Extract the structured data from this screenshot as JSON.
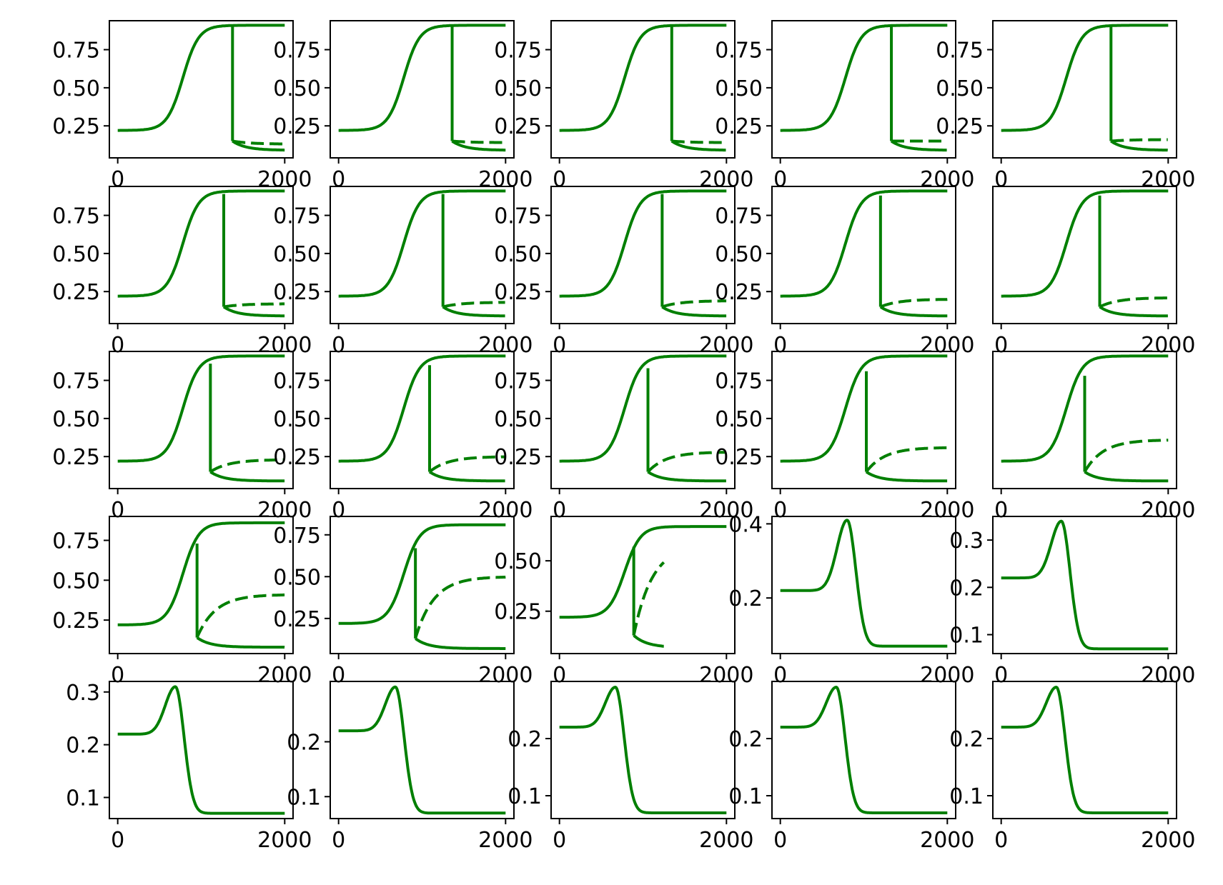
{
  "figure": {
    "title": "",
    "rows": 5,
    "cols": 5,
    "line_color": "#007f00"
  },
  "chart_data": [
    {
      "panel": 1,
      "type": "line",
      "kind": "fold",
      "ylim": [
        0.04,
        0.94
      ],
      "yticks": [
        0.25,
        0.5,
        0.75
      ],
      "ytick_labels": [
        "0.25",
        "0.50",
        "0.75"
      ],
      "xlim": [
        -100,
        2100
      ],
      "xticks": [
        0,
        2000
      ],
      "xtick_labels": [
        "0",
        "2000"
      ],
      "fold_x": 1375,
      "end_x": 2000,
      "base": 0.22,
      "upper": 0.91,
      "low": 0.09,
      "dashed_top": 0.13,
      "jump_top": 0.9,
      "x_start": 0,
      "x_end": 2000
    },
    {
      "panel": 2,
      "type": "line",
      "kind": "fold",
      "ylim": [
        0.04,
        0.94
      ],
      "yticks": [
        0.25,
        0.5,
        0.75
      ],
      "ytick_labels": [
        "0.25",
        "0.50",
        "0.75"
      ],
      "xlim": [
        -100,
        2100
      ],
      "xticks": [
        0,
        2000
      ],
      "xtick_labels": [
        "0",
        "2000"
      ],
      "fold_x": 1360,
      "end_x": 2000,
      "base": 0.22,
      "upper": 0.91,
      "low": 0.09,
      "dashed_top": 0.14,
      "jump_top": 0.9,
      "x_start": 0,
      "x_end": 2000
    },
    {
      "panel": 3,
      "type": "line",
      "kind": "fold",
      "ylim": [
        0.04,
        0.94
      ],
      "yticks": [
        0.25,
        0.5,
        0.75
      ],
      "ytick_labels": [
        "0.25",
        "0.50",
        "0.75"
      ],
      "xlim": [
        -100,
        2100
      ],
      "xticks": [
        0,
        2000
      ],
      "xtick_labels": [
        "0",
        "2000"
      ],
      "fold_x": 1345,
      "end_x": 2000,
      "base": 0.22,
      "upper": 0.91,
      "low": 0.09,
      "dashed_top": 0.14,
      "jump_top": 0.9,
      "x_start": 0,
      "x_end": 2000
    },
    {
      "panel": 4,
      "type": "line",
      "kind": "fold",
      "ylim": [
        0.04,
        0.94
      ],
      "yticks": [
        0.25,
        0.5,
        0.75
      ],
      "ytick_labels": [
        "0.25",
        "0.50",
        "0.75"
      ],
      "xlim": [
        -100,
        2100
      ],
      "xticks": [
        0,
        2000
      ],
      "xtick_labels": [
        "0",
        "2000"
      ],
      "fold_x": 1330,
      "end_x": 2000,
      "base": 0.22,
      "upper": 0.91,
      "low": 0.09,
      "dashed_top": 0.15,
      "jump_top": 0.9,
      "x_start": 0,
      "x_end": 2000
    },
    {
      "panel": 5,
      "type": "line",
      "kind": "fold",
      "ylim": [
        0.04,
        0.94
      ],
      "yticks": [
        0.25,
        0.5,
        0.75
      ],
      "ytick_labels": [
        "0.25",
        "0.50",
        "0.75"
      ],
      "xlim": [
        -100,
        2100
      ],
      "xticks": [
        0,
        2000
      ],
      "xtick_labels": [
        "0",
        "2000"
      ],
      "fold_x": 1315,
      "end_x": 2000,
      "base": 0.22,
      "upper": 0.91,
      "low": 0.09,
      "dashed_top": 0.16,
      "jump_top": 0.9,
      "x_start": 0,
      "x_end": 2000
    },
    {
      "panel": 6,
      "type": "line",
      "kind": "fold",
      "ylim": [
        0.04,
        0.94
      ],
      "yticks": [
        0.25,
        0.5,
        0.75
      ],
      "ytick_labels": [
        "0.25",
        "0.50",
        "0.75"
      ],
      "xlim": [
        -100,
        2100
      ],
      "xticks": [
        0,
        2000
      ],
      "xtick_labels": [
        "0",
        "2000"
      ],
      "fold_x": 1270,
      "end_x": 2000,
      "base": 0.22,
      "upper": 0.91,
      "low": 0.09,
      "dashed_top": 0.17,
      "jump_top": 0.89,
      "x_start": 0,
      "x_end": 2000
    },
    {
      "panel": 7,
      "type": "line",
      "kind": "fold",
      "ylim": [
        0.04,
        0.94
      ],
      "yticks": [
        0.25,
        0.5,
        0.75
      ],
      "ytick_labels": [
        "0.25",
        "0.50",
        "0.75"
      ],
      "xlim": [
        -100,
        2100
      ],
      "xticks": [
        0,
        2000
      ],
      "xtick_labels": [
        "0",
        "2000"
      ],
      "fold_x": 1250,
      "end_x": 2000,
      "base": 0.22,
      "upper": 0.91,
      "low": 0.09,
      "dashed_top": 0.18,
      "jump_top": 0.89,
      "x_start": 0,
      "x_end": 2000
    },
    {
      "panel": 8,
      "type": "line",
      "kind": "fold",
      "ylim": [
        0.04,
        0.94
      ],
      "yticks": [
        0.25,
        0.5,
        0.75
      ],
      "ytick_labels": [
        "0.25",
        "0.50",
        "0.75"
      ],
      "xlim": [
        -100,
        2100
      ],
      "xticks": [
        0,
        2000
      ],
      "xtick_labels": [
        "0",
        "2000"
      ],
      "fold_x": 1230,
      "end_x": 2000,
      "base": 0.22,
      "upper": 0.91,
      "low": 0.09,
      "dashed_top": 0.19,
      "jump_top": 0.89,
      "x_start": 0,
      "x_end": 2000
    },
    {
      "panel": 9,
      "type": "line",
      "kind": "fold",
      "ylim": [
        0.04,
        0.94
      ],
      "yticks": [
        0.25,
        0.5,
        0.75
      ],
      "ytick_labels": [
        "0.25",
        "0.50",
        "0.75"
      ],
      "xlim": [
        -100,
        2100
      ],
      "xticks": [
        0,
        2000
      ],
      "xtick_labels": [
        "0",
        "2000"
      ],
      "fold_x": 1200,
      "end_x": 2000,
      "base": 0.22,
      "upper": 0.91,
      "low": 0.09,
      "dashed_top": 0.2,
      "jump_top": 0.88,
      "x_start": 0,
      "x_end": 2000
    },
    {
      "panel": 10,
      "type": "line",
      "kind": "fold",
      "ylim": [
        0.04,
        0.94
      ],
      "yticks": [],
      "ytick_labels": [],
      "xlim": [
        -100,
        2100
      ],
      "xticks": [
        0,
        2000
      ],
      "xtick_labels": [
        "0",
        "2000"
      ],
      "fold_x": 1180,
      "end_x": 2000,
      "base": 0.22,
      "upper": 0.91,
      "low": 0.09,
      "dashed_top": 0.21,
      "jump_top": 0.88,
      "x_start": 0,
      "x_end": 2000
    },
    {
      "panel": 11,
      "type": "line",
      "kind": "fold",
      "ylim": [
        0.04,
        0.94
      ],
      "yticks": [
        0.25,
        0.5,
        0.75
      ],
      "ytick_labels": [
        "0.25",
        "0.50",
        "0.75"
      ],
      "xlim": [
        -100,
        2100
      ],
      "xticks": [
        0,
        2000
      ],
      "xtick_labels": [
        "0",
        "2000"
      ],
      "fold_x": 1110,
      "end_x": 2000,
      "base": 0.22,
      "upper": 0.91,
      "low": 0.09,
      "dashed_top": 0.23,
      "jump_top": 0.86,
      "x_start": 0,
      "x_end": 2000
    },
    {
      "panel": 12,
      "type": "line",
      "kind": "fold",
      "ylim": [
        0.04,
        0.94
      ],
      "yticks": [
        0.25,
        0.5,
        0.75
      ],
      "ytick_labels": [
        "0.25",
        "0.50",
        "0.75"
      ],
      "xlim": [
        -100,
        2100
      ],
      "xticks": [
        0,
        2000
      ],
      "xtick_labels": [
        "0",
        "2000"
      ],
      "fold_x": 1090,
      "end_x": 2000,
      "base": 0.22,
      "upper": 0.91,
      "low": 0.09,
      "dashed_top": 0.25,
      "jump_top": 0.85,
      "x_start": 0,
      "x_end": 2000
    },
    {
      "panel": 13,
      "type": "line",
      "kind": "fold",
      "ylim": [
        0.04,
        0.94
      ],
      "yticks": [
        0.25,
        0.5,
        0.75
      ],
      "ytick_labels": [
        "0.25",
        "0.50",
        "0.75"
      ],
      "xlim": [
        -100,
        2100
      ],
      "xticks": [
        0,
        2000
      ],
      "xtick_labels": [
        "0",
        "2000"
      ],
      "fold_x": 1060,
      "end_x": 2000,
      "base": 0.22,
      "upper": 0.91,
      "low": 0.09,
      "dashed_top": 0.28,
      "jump_top": 0.83,
      "x_start": 0,
      "x_end": 2000
    },
    {
      "panel": 14,
      "type": "line",
      "kind": "fold",
      "ylim": [
        0.04,
        0.94
      ],
      "yticks": [
        0.25,
        0.5,
        0.75
      ],
      "ytick_labels": [
        "0.25",
        "0.50",
        "0.75"
      ],
      "xlim": [
        -100,
        2100
      ],
      "xticks": [
        0,
        2000
      ],
      "xtick_labels": [
        "0",
        "2000"
      ],
      "fold_x": 1030,
      "end_x": 2000,
      "base": 0.22,
      "upper": 0.91,
      "low": 0.09,
      "dashed_top": 0.31,
      "jump_top": 0.81,
      "x_start": 0,
      "x_end": 2000
    },
    {
      "panel": 15,
      "type": "line",
      "kind": "fold",
      "ylim": [
        0.04,
        0.94
      ],
      "yticks": [],
      "ytick_labels": [],
      "xlim": [
        -100,
        2100
      ],
      "xticks": [
        0,
        2000
      ],
      "xtick_labels": [
        "0",
        "2000"
      ],
      "fold_x": 1000,
      "end_x": 2000,
      "base": 0.22,
      "upper": 0.91,
      "low": 0.09,
      "dashed_top": 0.36,
      "jump_top": 0.78,
      "x_start": 0,
      "x_end": 2000
    },
    {
      "panel": 16,
      "type": "line",
      "kind": "fold",
      "ylim": [
        0.04,
        0.9
      ],
      "yticks": [
        0.25,
        0.5,
        0.75
      ],
      "ytick_labels": [
        "0.25",
        "0.50",
        "0.75"
      ],
      "xlim": [
        -100,
        2100
      ],
      "xticks": [
        0,
        2000
      ],
      "xtick_labels": [
        "0",
        "2000"
      ],
      "fold_x": 950,
      "end_x": 2000,
      "base": 0.22,
      "upper": 0.86,
      "low": 0.08,
      "dashed_top": 0.41,
      "jump_top": 0.73,
      "x_start": 0,
      "x_end": 2000
    },
    {
      "panel": 17,
      "type": "line",
      "kind": "fold",
      "ylim": [
        0.04,
        0.86
      ],
      "yticks": [
        0.25,
        0.5,
        0.75
      ],
      "ytick_labels": [
        "0.25",
        "0.50",
        "0.75"
      ],
      "xlim": [
        -100,
        2100
      ],
      "xticks": [
        0,
        2000
      ],
      "xtick_labels": [
        "0",
        "2000"
      ],
      "fold_x": 920,
      "end_x": 2000,
      "base": 0.22,
      "upper": 0.81,
      "low": 0.07,
      "dashed_top": 0.5,
      "jump_top": 0.67,
      "x_start": 0,
      "x_end": 2000
    },
    {
      "panel": 18,
      "type": "line",
      "kind": "fold",
      "ylim": [
        0.04,
        0.72
      ],
      "yticks": [
        0.25,
        0.5
      ],
      "ytick_labels": [
        "0.25",
        "0.50"
      ],
      "xlim": [
        -100,
        2100
      ],
      "xticks": [
        0,
        2000
      ],
      "xtick_labels": [
        "0",
        "2000"
      ],
      "fold_x": 890,
      "end_x": 1250,
      "base": 0.22,
      "upper": 0.67,
      "low": 0.07,
      "dashed_top": 0.58,
      "jump_top": 0.57,
      "x_start": 0,
      "x_end": 2000
    },
    {
      "panel": 19,
      "type": "line",
      "kind": "peak",
      "ylim": [
        0.05,
        0.42
      ],
      "yticks": [
        0.2,
        0.4
      ],
      "ytick_labels": [
        "0.2",
        "0.4"
      ],
      "xlim": [
        -100,
        2100
      ],
      "xticks": [
        0,
        2000
      ],
      "xtick_labels": [
        "0",
        "2000"
      ],
      "base": 0.22,
      "peak": 0.41,
      "peak_x": 800,
      "final": 0.07,
      "x_start": 0,
      "x_end": 2000
    },
    {
      "panel": 20,
      "type": "line",
      "kind": "peak",
      "ylim": [
        0.06,
        0.35
      ],
      "yticks": [
        0.1,
        0.2,
        0.3
      ],
      "ytick_labels": [
        "0.1",
        "0.2",
        "0.3"
      ],
      "xlim": [
        -100,
        2100
      ],
      "xticks": [
        0,
        2000
      ],
      "xtick_labels": [
        "0",
        "2000"
      ],
      "base": 0.22,
      "peak": 0.34,
      "peak_x": 720,
      "final": 0.07,
      "x_start": 0,
      "x_end": 2000
    },
    {
      "panel": 21,
      "type": "line",
      "kind": "peak",
      "ylim": [
        0.06,
        0.32
      ],
      "yticks": [
        0.1,
        0.2,
        0.3
      ],
      "ytick_labels": [
        "0.1",
        "0.2",
        "0.3"
      ],
      "xlim": [
        -100,
        2100
      ],
      "xticks": [
        0,
        2000
      ],
      "xtick_labels": [
        "0",
        "2000"
      ],
      "base": 0.22,
      "peak": 0.31,
      "peak_x": 690,
      "final": 0.07,
      "x_start": 0,
      "x_end": 2000
    },
    {
      "panel": 22,
      "type": "line",
      "kind": "peak",
      "ylim": [
        0.06,
        0.31
      ],
      "yticks": [
        0.1,
        0.2
      ],
      "ytick_labels": [
        "0.1",
        "0.2"
      ],
      "xlim": [
        -100,
        2100
      ],
      "xticks": [
        0,
        2000
      ],
      "xtick_labels": [
        "0",
        "2000"
      ],
      "base": 0.22,
      "peak": 0.3,
      "peak_x": 680,
      "final": 0.07,
      "x_start": 0,
      "x_end": 2000
    },
    {
      "panel": 23,
      "type": "line",
      "kind": "peak",
      "ylim": [
        0.06,
        0.3
      ],
      "yticks": [
        0.1,
        0.2
      ],
      "ytick_labels": [
        "0.1",
        "0.2"
      ],
      "xlim": [
        -100,
        2100
      ],
      "xticks": [
        0,
        2000
      ],
      "xtick_labels": [
        "0",
        "2000"
      ],
      "base": 0.22,
      "peak": 0.29,
      "peak_x": 670,
      "final": 0.07,
      "x_start": 0,
      "x_end": 2000
    },
    {
      "panel": 24,
      "type": "line",
      "kind": "peak",
      "ylim": [
        0.06,
        0.3
      ],
      "yticks": [
        0.1,
        0.2
      ],
      "ytick_labels": [
        "0.1",
        "0.2"
      ],
      "xlim": [
        -100,
        2100
      ],
      "xticks": [
        0,
        2000
      ],
      "xtick_labels": [
        "0",
        "2000"
      ],
      "base": 0.22,
      "peak": 0.29,
      "peak_x": 670,
      "final": 0.07,
      "x_start": 0,
      "x_end": 2000
    },
    {
      "panel": 25,
      "type": "line",
      "kind": "peak",
      "ylim": [
        0.06,
        0.3
      ],
      "yticks": [
        0.1,
        0.2
      ],
      "ytick_labels": [
        "0.1",
        "0.2"
      ],
      "xlim": [
        -100,
        2100
      ],
      "xticks": [
        0,
        2000
      ],
      "xtick_labels": [
        "0",
        "2000"
      ],
      "base": 0.22,
      "peak": 0.29,
      "peak_x": 660,
      "final": 0.07,
      "x_start": 0,
      "x_end": 2000
    }
  ]
}
